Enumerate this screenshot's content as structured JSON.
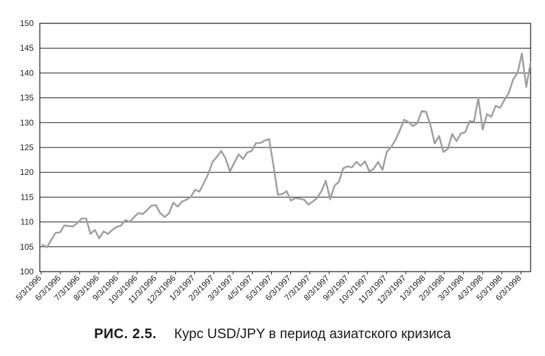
{
  "chart_data": {
    "type": "line",
    "figure_label": "РИС. 2.5.",
    "title": "Курс USD/JPY в период азиатского кризиса",
    "xlabel": "",
    "ylabel": "",
    "ylim": [
      100,
      150
    ],
    "yticks": [
      100,
      105,
      110,
      115,
      120,
      125,
      130,
      135,
      140,
      145,
      150
    ],
    "xticks": [
      "5/3/1996",
      "6/3/1996",
      "7/3/1996",
      "8/3/1996",
      "9/3/1996",
      "10/3/1996",
      "11/3/1996",
      "12/3/1996",
      "1/3/1997",
      "2/3/1997",
      "3/3/1997",
      "4/5/1997",
      "5/3/1997",
      "6/3/1997",
      "7/3/1997",
      "8/3/1997",
      "9/3/1997",
      "10/3/1997",
      "11/3/1997",
      "12/3/1997",
      "1/3/1998",
      "2/3/1998",
      "3/3/1998",
      "4/3/1998",
      "5/3/1998",
      "6/3/1998"
    ],
    "grid": "horizontal",
    "line_color": "#a0a0a0",
    "values": [
      105.4,
      104.9,
      106.4,
      107.8,
      107.9,
      109.3,
      109.2,
      109.1,
      109.8,
      110.7,
      110.7,
      107.6,
      108.4,
      106.7,
      108.1,
      107.6,
      108.4,
      109.0,
      109.3,
      110.4,
      110.0,
      111.0,
      111.8,
      111.6,
      112.4,
      113.3,
      113.4,
      111.8,
      111.0,
      111.7,
      113.9,
      113.1,
      114.1,
      114.5,
      115.0,
      116.5,
      116.1,
      117.8,
      119.6,
      122.1,
      123.1,
      124.3,
      122.8,
      120.2,
      121.9,
      123.6,
      122.7,
      124.0,
      124.3,
      125.9,
      125.9,
      126.4,
      126.7,
      121.3,
      115.5,
      115.6,
      116.2,
      114.3,
      114.8,
      114.7,
      114.5,
      113.5,
      114.1,
      114.8,
      116.2,
      118.3,
      114.6,
      117.3,
      118.1,
      120.8,
      121.2,
      121.0,
      122.1,
      121.3,
      122.2,
      120.2,
      120.7,
      122.1,
      120.5,
      124.1,
      125.1,
      126.5,
      128.5,
      130.6,
      130.1,
      129.3,
      129.9,
      132.3,
      132.2,
      129.6,
      125.8,
      127.3,
      124.1,
      124.7,
      127.7,
      126.3,
      127.8,
      128.1,
      130.3,
      130.2,
      134.9,
      128.6,
      131.7,
      131.2,
      133.4,
      133.0,
      134.6,
      136.0,
      138.7,
      140.0,
      143.9,
      137.2,
      142.1
    ]
  }
}
